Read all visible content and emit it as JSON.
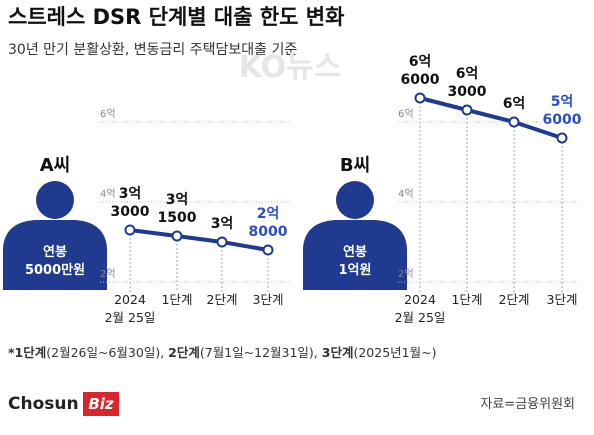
{
  "header": {
    "title": "스트레스 DSR 단계별 대출 한도 변화",
    "subtitle": "30년 만기 분활상환, 변동금리 주택담보대출 기준",
    "watermark": "KO뉴스"
  },
  "chart_data": [
    {
      "type": "line",
      "person": "A씨",
      "salary": "연봉\n5000만원",
      "categories": [
        "2024\n2월 25일",
        "1단계",
        "2단계",
        "3단계"
      ],
      "values": [
        3.3,
        3.15,
        3.0,
        2.8
      ],
      "value_labels": [
        "3억\n3000",
        "3억\n1500",
        "3억",
        "2억\n8000"
      ],
      "ylim": [
        1.7,
        6.7
      ],
      "yticks": [
        {
          "value": 2,
          "label": "2억"
        },
        {
          "value": 4,
          "label": "4억"
        },
        {
          "value": 6,
          "label": "6억"
        }
      ],
      "color": "#1f3a8f",
      "grid": true
    },
    {
      "type": "line",
      "person": "B씨",
      "salary": "연봉\n1억원",
      "categories": [
        "2024\n2월 25일",
        "1단계",
        "2단계",
        "3단계"
      ],
      "values": [
        6.6,
        6.3,
        6.0,
        5.6
      ],
      "value_labels": [
        "6억\n6000",
        "6억\n3000",
        "6억",
        "5억\n6000"
      ],
      "ylim": [
        1.7,
        6.7
      ],
      "yticks": [
        {
          "value": 2,
          "label": "2억"
        },
        {
          "value": 4,
          "label": "4억"
        },
        {
          "value": 6,
          "label": "6억"
        }
      ],
      "color": "#1f3a8f",
      "grid": true
    }
  ],
  "footnote": [
    {
      "stage": "*1단계",
      "period": "(2월26일~6월30일), "
    },
    {
      "stage": "2단계",
      "period": "(7월1일~12월31일), "
    },
    {
      "stage": "3단계",
      "period": "(2025년1월~)"
    }
  ],
  "logo": {
    "main": "Chosun",
    "accent": "Biz"
  },
  "source": "자료=금융위원회"
}
